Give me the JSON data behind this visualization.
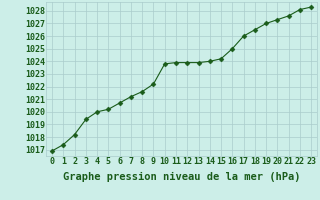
{
  "x": [
    0,
    1,
    2,
    3,
    4,
    5,
    6,
    7,
    8,
    9,
    10,
    11,
    12,
    13,
    14,
    15,
    16,
    17,
    18,
    19,
    20,
    21,
    22,
    23
  ],
  "y": [
    1016.9,
    1017.4,
    1018.2,
    1019.4,
    1020.0,
    1020.2,
    1020.7,
    1021.2,
    1021.6,
    1022.2,
    1023.8,
    1023.9,
    1023.9,
    1023.9,
    1024.0,
    1024.2,
    1025.0,
    1026.0,
    1026.5,
    1027.0,
    1027.3,
    1027.6,
    1028.1,
    1028.3
  ],
  "ylim": [
    1016.5,
    1028.7
  ],
  "yticks": [
    1017,
    1018,
    1019,
    1020,
    1021,
    1022,
    1023,
    1024,
    1025,
    1026,
    1027,
    1028
  ],
  "xlim": [
    -0.5,
    23.5
  ],
  "xticks": [
    0,
    1,
    2,
    3,
    4,
    5,
    6,
    7,
    8,
    9,
    10,
    11,
    12,
    13,
    14,
    15,
    16,
    17,
    18,
    19,
    20,
    21,
    22,
    23
  ],
  "xlabel": "Graphe pression niveau de la mer (hPa)",
  "line_color": "#1a5c1a",
  "marker": "D",
  "marker_size": 2.5,
  "bg_color": "#cceee8",
  "grid_color": "#aacccc",
  "tick_color": "#1a5c1a",
  "label_color": "#1a5c1a",
  "xlabel_fontsize": 7.5,
  "tick_fontsize": 6.0
}
